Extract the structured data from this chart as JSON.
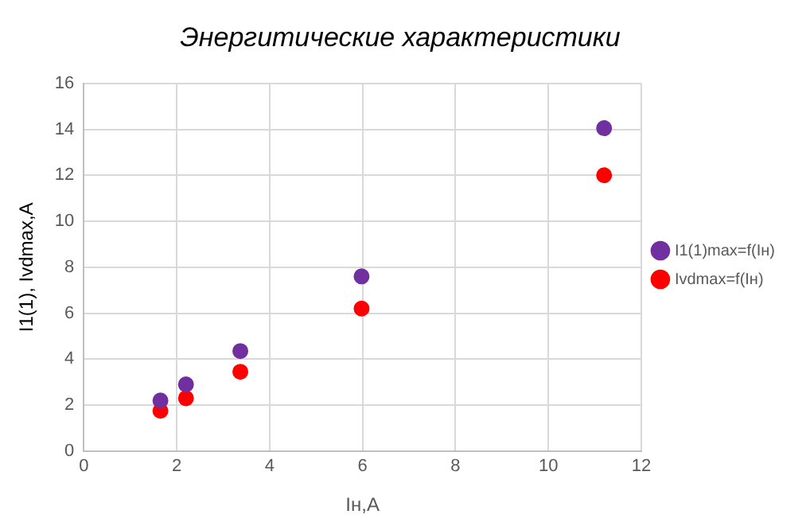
{
  "chart_data": {
    "type": "scatter",
    "title": "Энергитические характеристики",
    "xlabel": "Iн,A",
    "ylabel": "I1(1), Ivdmax,A",
    "x": [
      1.65,
      2.2,
      3.37,
      5.98,
      11.2
    ],
    "series": [
      {
        "name": "I1(1)max=f(Iн)",
        "color": "#7030a0",
        "values": [
          2.2,
          2.9,
          4.35,
          7.6,
          14.05
        ]
      },
      {
        "name": "Ivdmax=f(Iн)",
        "color": "#ff0000",
        "values": [
          1.75,
          2.3,
          3.45,
          6.2,
          12.0
        ]
      }
    ],
    "xlim": [
      0,
      12
    ],
    "xticks": [
      0,
      2,
      4,
      6,
      8,
      10,
      12
    ],
    "ylim": [
      0,
      16
    ],
    "yticks": [
      0,
      2,
      4,
      6,
      8,
      10,
      12,
      14,
      16
    ],
    "grid": true,
    "legend": "right",
    "marker": "circle"
  }
}
